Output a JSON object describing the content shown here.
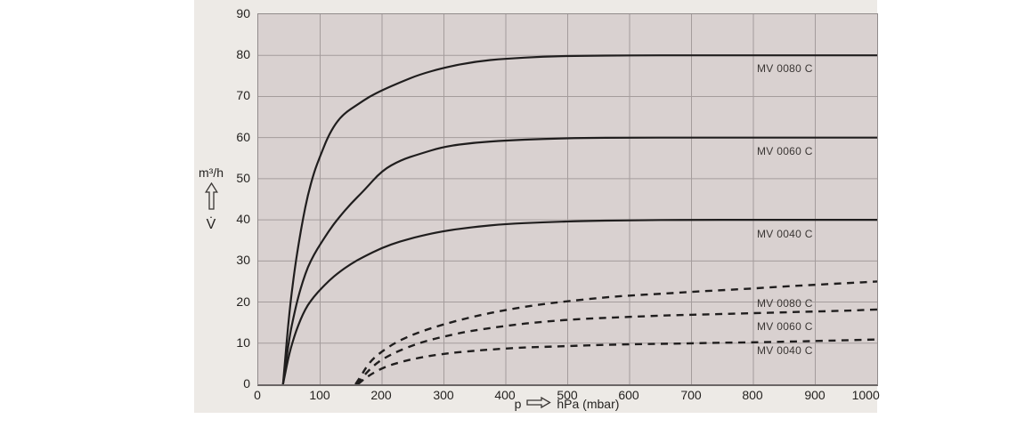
{
  "page": {
    "background": "#ffffff",
    "panel_bg": "#edeae6"
  },
  "chart_data": {
    "type": "line",
    "title": "",
    "xlabel_prefix": "p",
    "xlabel_unit": "hPa (mbar)",
    "ylabel_unit": "m³/h",
    "ylabel_symbol": "V̇",
    "xlim": [
      0,
      1000
    ],
    "ylim": [
      0,
      90
    ],
    "x_ticks": [
      0,
      100,
      200,
      300,
      400,
      500,
      600,
      700,
      800,
      900,
      1000
    ],
    "y_ticks": [
      0,
      10,
      20,
      30,
      40,
      50,
      60,
      70,
      80,
      90
    ],
    "grid": true,
    "legend_position": "inline-right",
    "plot_bg": "#d9d1d0",
    "grid_color": "#a49c9c",
    "axis_color": "#918b8b",
    "curve_color": "#201e1e",
    "label_color": "#3a3634",
    "series": [
      {
        "name": "MV 0080 C",
        "label": "MV 0080 C",
        "line_style": "solid",
        "label_anchor": {
          "p": 806,
          "v": 76.6
        },
        "points": [
          [
            40,
            0
          ],
          [
            44,
            7
          ],
          [
            48,
            14
          ],
          [
            53,
            21
          ],
          [
            58,
            27
          ],
          [
            65,
            34
          ],
          [
            72,
            40
          ],
          [
            80,
            46
          ],
          [
            90,
            51.5
          ],
          [
            100,
            55.5
          ],
          [
            112,
            60
          ],
          [
            125,
            63.5
          ],
          [
            140,
            66
          ],
          [
            160,
            68
          ],
          [
            180,
            70
          ],
          [
            200,
            71.5
          ],
          [
            230,
            73.5
          ],
          [
            260,
            75.3
          ],
          [
            300,
            77
          ],
          [
            350,
            78.5
          ],
          [
            400,
            79.2
          ],
          [
            460,
            79.7
          ],
          [
            520,
            79.9
          ],
          [
            600,
            80
          ],
          [
            700,
            80
          ],
          [
            800,
            80
          ],
          [
            900,
            80
          ],
          [
            1000,
            80
          ]
        ]
      },
      {
        "name": "MV 0060 C",
        "label": "MV 0060 C",
        "line_style": "solid",
        "label_anchor": {
          "p": 806,
          "v": 56.5
        },
        "points": [
          [
            40,
            0
          ],
          [
            44,
            4.5
          ],
          [
            48,
            9
          ],
          [
            53,
            13.5
          ],
          [
            58,
            17
          ],
          [
            65,
            21.5
          ],
          [
            72,
            25
          ],
          [
            80,
            28.5
          ],
          [
            90,
            31.5
          ],
          [
            100,
            34
          ],
          [
            115,
            37.5
          ],
          [
            130,
            40.5
          ],
          [
            150,
            44
          ],
          [
            170,
            47
          ],
          [
            200,
            52
          ],
          [
            230,
            54.5
          ],
          [
            260,
            56
          ],
          [
            300,
            57.8
          ],
          [
            350,
            58.8
          ],
          [
            400,
            59.3
          ],
          [
            460,
            59.7
          ],
          [
            520,
            59.9
          ],
          [
            600,
            60
          ],
          [
            700,
            60
          ],
          [
            800,
            60
          ],
          [
            900,
            60
          ],
          [
            1000,
            60
          ]
        ]
      },
      {
        "name": "MV 0040 C",
        "label": "MV 0040 C",
        "line_style": "solid",
        "label_anchor": {
          "p": 806,
          "v": 36.4
        },
        "points": [
          [
            40,
            0
          ],
          [
            44,
            3
          ],
          [
            48,
            6
          ],
          [
            53,
            9
          ],
          [
            58,
            11.5
          ],
          [
            65,
            14.5
          ],
          [
            72,
            17
          ],
          [
            80,
            19.3
          ],
          [
            90,
            21.3
          ],
          [
            100,
            23
          ],
          [
            115,
            25.3
          ],
          [
            130,
            27.2
          ],
          [
            150,
            29.3
          ],
          [
            170,
            31
          ],
          [
            200,
            33.2
          ],
          [
            230,
            34.8
          ],
          [
            260,
            36
          ],
          [
            300,
            37.3
          ],
          [
            350,
            38.3
          ],
          [
            400,
            39
          ],
          [
            460,
            39.4
          ],
          [
            520,
            39.7
          ],
          [
            600,
            39.9
          ],
          [
            700,
            40
          ],
          [
            800,
            40
          ],
          [
            900,
            40
          ],
          [
            1000,
            40
          ]
        ]
      },
      {
        "name": "MV 0080 C",
        "label": "MV 0080 C",
        "line_style": "dashed",
        "label_anchor": {
          "p": 806,
          "v": 19.5
        },
        "points": [
          [
            157,
            0
          ],
          [
            166,
            2
          ],
          [
            175,
            4.3
          ],
          [
            186,
            6.3
          ],
          [
            200,
            8
          ],
          [
            220,
            10
          ],
          [
            245,
            11.8
          ],
          [
            270,
            13.2
          ],
          [
            300,
            14.6
          ],
          [
            340,
            16.2
          ],
          [
            380,
            17.5
          ],
          [
            420,
            18.6
          ],
          [
            460,
            19.5
          ],
          [
            500,
            20.2
          ],
          [
            550,
            21
          ],
          [
            600,
            21.6
          ],
          [
            650,
            22
          ],
          [
            700,
            22.5
          ],
          [
            750,
            22.9
          ],
          [
            800,
            23.3
          ],
          [
            850,
            23.8
          ],
          [
            900,
            24.2
          ],
          [
            950,
            24.6
          ],
          [
            1000,
            25
          ]
        ]
      },
      {
        "name": "MV 0060 C",
        "label": "MV 0060 C",
        "line_style": "dashed",
        "label_anchor": {
          "p": 806,
          "v": 13.9
        },
        "points": [
          [
            159,
            0
          ],
          [
            168,
            1.6
          ],
          [
            178,
            3.3
          ],
          [
            190,
            5
          ],
          [
            205,
            6.5
          ],
          [
            225,
            8
          ],
          [
            250,
            9.5
          ],
          [
            275,
            10.7
          ],
          [
            305,
            11.8
          ],
          [
            340,
            12.9
          ],
          [
            380,
            13.8
          ],
          [
            420,
            14.6
          ],
          [
            460,
            15.2
          ],
          [
            500,
            15.7
          ],
          [
            550,
            16.1
          ],
          [
            600,
            16.4
          ],
          [
            650,
            16.7
          ],
          [
            700,
            16.9
          ],
          [
            750,
            17.1
          ],
          [
            800,
            17.3
          ],
          [
            850,
            17.5
          ],
          [
            900,
            17.7
          ],
          [
            950,
            17.9
          ],
          [
            1000,
            18.2
          ]
        ]
      },
      {
        "name": "MV 0040 C",
        "label": "MV 0040 C",
        "line_style": "dashed",
        "label_anchor": {
          "p": 806,
          "v": 8.0
        },
        "points": [
          [
            161,
            0
          ],
          [
            170,
            1.2
          ],
          [
            182,
            2.4
          ],
          [
            196,
            3.6
          ],
          [
            212,
            4.6
          ],
          [
            232,
            5.5
          ],
          [
            255,
            6.3
          ],
          [
            280,
            7
          ],
          [
            310,
            7.6
          ],
          [
            345,
            8.1
          ],
          [
            380,
            8.5
          ],
          [
            420,
            8.9
          ],
          [
            460,
            9.1
          ],
          [
            500,
            9.3
          ],
          [
            560,
            9.6
          ],
          [
            620,
            9.8
          ],
          [
            680,
            9.9
          ],
          [
            740,
            10.1
          ],
          [
            800,
            10.2
          ],
          [
            860,
            10.4
          ],
          [
            920,
            10.6
          ],
          [
            1000,
            10.9
          ]
        ]
      }
    ]
  }
}
